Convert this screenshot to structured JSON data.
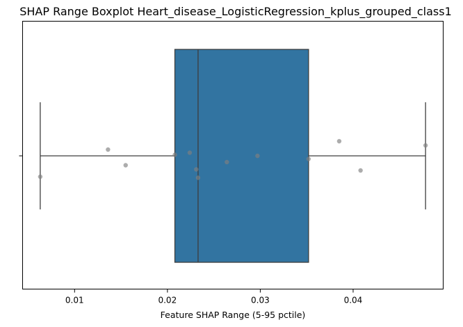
{
  "chart_data": {
    "type": "boxplot",
    "title": "SHAP Range Boxplot Heart_disease_LogisticRegression_kplus_grouped_class1",
    "xlabel": "Feature SHAP Range (5-95 pctile)",
    "ylabel": "",
    "xlim": [
      0.0044,
      0.0497
    ],
    "x_ticks": [
      0.01,
      0.02,
      0.03,
      0.04
    ],
    "x_tick_labels": [
      "0.01",
      "0.02",
      "0.03",
      "0.04"
    ],
    "grid": false,
    "box": {
      "whisker_low": 0.0063,
      "q1": 0.0208,
      "median": 0.0233,
      "q3": 0.0352,
      "whisker_high": 0.0478
    },
    "points": [
      {
        "x": 0.0063,
        "y": 0.2
      },
      {
        "x": 0.0136,
        "y": -0.06
      },
      {
        "x": 0.0155,
        "y": 0.09
      },
      {
        "x": 0.0208,
        "y": -0.01
      },
      {
        "x": 0.0224,
        "y": -0.03
      },
      {
        "x": 0.0231,
        "y": 0.13
      },
      {
        "x": 0.0233,
        "y": 0.21
      },
      {
        "x": 0.0264,
        "y": 0.06
      },
      {
        "x": 0.0297,
        "y": 0.0
      },
      {
        "x": 0.0352,
        "y": 0.03
      },
      {
        "x": 0.0385,
        "y": -0.14
      },
      {
        "x": 0.0408,
        "y": 0.14
      },
      {
        "x": 0.0478,
        "y": -0.1
      }
    ],
    "colors": {
      "box_fill": "#3274a1",
      "line": "#3d3d3d",
      "point": "#808080"
    }
  }
}
